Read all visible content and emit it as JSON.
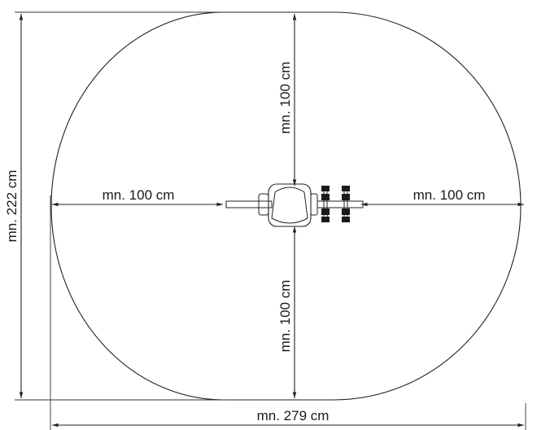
{
  "diagram": {
    "labels": {
      "total_height": "mn. 222 cm",
      "total_width": "mn. 279 cm",
      "top_clearance": "mn. 100 cm",
      "bottom_clearance": "mn. 100 cm",
      "left_clearance": "mn. 100 cm",
      "right_clearance": "mn. 100 cm"
    },
    "colors": {
      "line": "#222222",
      "background": "#ffffff"
    }
  }
}
